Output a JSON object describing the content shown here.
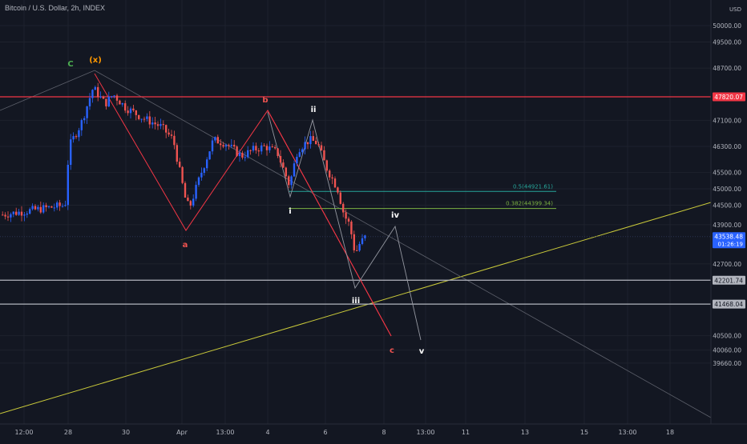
{
  "header": {
    "title": "Bitcoin / U.S. Dollar, 2h, INDEX"
  },
  "colors": {
    "background": "#131722",
    "up": "#2962ff",
    "down": "#ef5350",
    "red_line": "#f23645",
    "yellow_line": "#c9c93a",
    "teal_line": "#26a69a",
    "green_line": "#7cb342",
    "grey_line": "#b2b5be",
    "price_label": "#2962ff"
  },
  "chart_data": {
    "type": "candlestick",
    "currency": "USD",
    "y_ticks": [
      50000,
      49500,
      48700,
      47100,
      46300,
      45500,
      45000,
      44500,
      43900,
      42700,
      40500,
      40060,
      39660
    ],
    "x_ticks": [
      "12:00",
      "28",
      "30",
      "Apr",
      "13:00",
      "4",
      "6",
      "8",
      "13:00",
      "11",
      "13",
      "15",
      "13:00",
      "18"
    ],
    "price_labels": [
      {
        "name": "red-resistance",
        "value": "47820.07",
        "price": 47820,
        "color": "#f23645"
      },
      {
        "name": "current",
        "value": "43538.48",
        "countdown": "01:26:19",
        "price": 43538,
        "color": "#2962ff"
      },
      {
        "name": "support-1",
        "value": "42201.74",
        "price": 42201,
        "color": "#b2b5be"
      },
      {
        "name": "support-2",
        "value": "41468.04",
        "price": 41468,
        "color": "#b2b5be"
      }
    ],
    "fib_levels": [
      {
        "label": "0.5(44921.61)",
        "price": 44921,
        "color": "#26a69a"
      },
      {
        "label": "0.382(44399.34)",
        "price": 44399,
        "color": "#7cb342"
      }
    ],
    "wave_labels": [
      {
        "text": "C",
        "color": "#4caf50"
      },
      {
        "text": "(x)",
        "color": "#ff9800"
      },
      {
        "text": "a",
        "color": "#ef5350"
      },
      {
        "text": "b",
        "color": "#ef5350"
      },
      {
        "text": "c",
        "color": "#ef5350"
      },
      {
        "text": "i",
        "color": "#ffffff"
      },
      {
        "text": "ii",
        "color": "#ffffff"
      },
      {
        "text": "iii",
        "color": "#ffffff"
      },
      {
        "text": "iv",
        "color": "#ffffff"
      },
      {
        "text": "v",
        "color": "#ffffff"
      }
    ],
    "price_path": [
      [
        0,
        44200
      ],
      [
        80,
        44500
      ],
      [
        85,
        46300
      ],
      [
        100,
        47000
      ],
      [
        115,
        48100
      ],
      [
        130,
        47600
      ],
      [
        140,
        47900
      ],
      [
        155,
        47500
      ],
      [
        175,
        47200
      ],
      [
        200,
        46900
      ],
      [
        215,
        46500
      ],
      [
        230,
        44700
      ],
      [
        235,
        44400
      ],
      [
        250,
        45500
      ],
      [
        265,
        46500
      ],
      [
        280,
        46400
      ],
      [
        300,
        46000
      ],
      [
        315,
        46200
      ],
      [
        330,
        46300
      ],
      [
        345,
        46100
      ],
      [
        360,
        45100
      ],
      [
        370,
        46200
      ],
      [
        385,
        46500
      ],
      [
        395,
        46400
      ],
      [
        405,
        45700
      ],
      [
        420,
        45000
      ],
      [
        428,
        44200
      ],
      [
        435,
        43900
      ],
      [
        442,
        43000
      ],
      [
        447,
        43300
      ],
      [
        455,
        43538
      ]
    ]
  }
}
